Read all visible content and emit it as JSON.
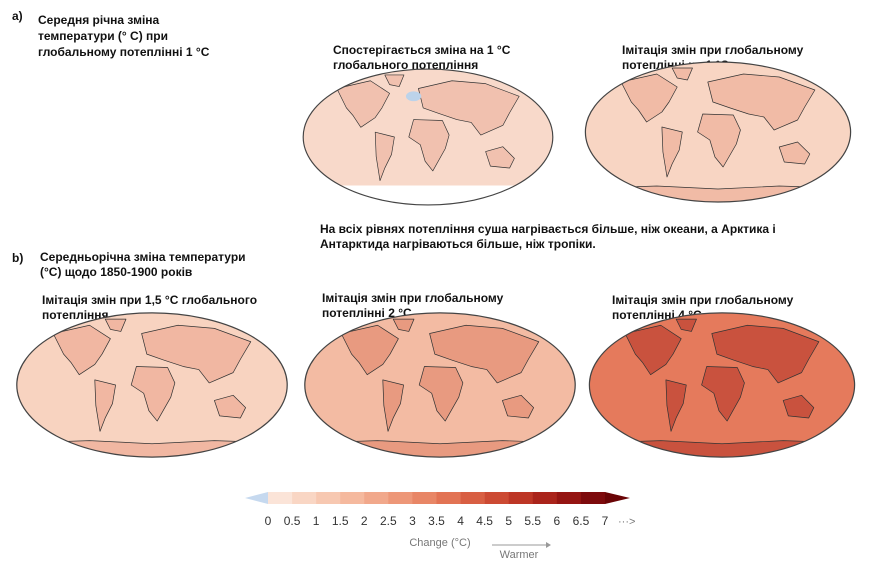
{
  "panel_a": {
    "letter": "a)",
    "title": [
      "Середня річна зміна",
      "температури (° C) при",
      "глобальному потеплінні 1 °C"
    ],
    "maps": [
      {
        "title": [
          "Спостерігається зміна на 1 °C",
          "глобального потепління"
        ]
      },
      {
        "title": [
          "Імітація змін при глобальному",
          "потеплінні на 1 °C"
        ]
      }
    ]
  },
  "note": [
    "На всіх рівнях потепління суша нагрівається більше, ніж океани, а Арктика і",
    "Антарктида нагріваються більше, ніж тропіки."
  ],
  "panel_b": {
    "letter": "b)",
    "title": [
      "Середньорічна зміна температури",
      "(°C) щодо 1850-1900 років"
    ],
    "maps": [
      {
        "title": [
          "Імітація змін при 1,5 °C глобального",
          "потепління"
        ]
      },
      {
        "title": [
          "Імітація змін при глобальному",
          "потеплінні 2 °C"
        ]
      },
      {
        "title": [
          "Імітація змін при глобальному",
          "потеплінні 4 °C"
        ]
      }
    ]
  },
  "legend": {
    "ticks": [
      0,
      0.5,
      1,
      1.5,
      2,
      2.5,
      3,
      3.5,
      4,
      4.5,
      5,
      5.5,
      6,
      6.5,
      7
    ],
    "colors": [
      "#fbe4d8",
      "#f9d6c4",
      "#f7c8b1",
      "#f5b99e",
      "#f1a88b",
      "#ed9778",
      "#e88666",
      "#e27354",
      "#d85f43",
      "#cc4a33",
      "#bd3626",
      "#aa241b",
      "#951512",
      "#7d0a0c"
    ],
    "low_color": "#c6d9ef",
    "high_color": "#6a0406",
    "more": "···>",
    "label": "Change (°C)",
    "direction": "Warmer"
  }
}
